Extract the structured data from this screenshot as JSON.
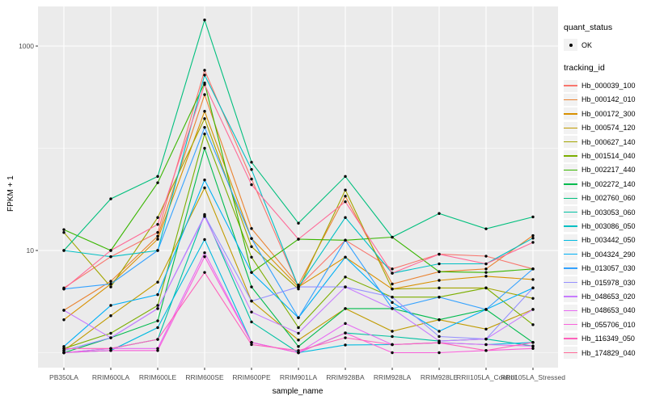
{
  "chart_data": {
    "type": "line",
    "title": "",
    "xlabel": "sample_name",
    "ylabel": "FPKM + 1",
    "y_scale": "log10",
    "y_tick_labels": [
      "1000",
      "10"
    ],
    "y_tick_values": [
      1000,
      10
    ],
    "y_minor_values": [
      100,
      1
    ],
    "ylim_log": [
      -0.05,
      3.3
    ],
    "grid": true,
    "legend_position": "right",
    "point_color": "#000000",
    "panel_bg": "#ebebeb",
    "grid_color": "#ffffff",
    "categories": [
      "PB350LA",
      "RRIM600LA",
      "RRIM600LE",
      "RRIM600SE",
      "RRIM600PE",
      "RRIM901LA",
      "RRIM928BA",
      "RRIM928LA",
      "RRIM928LE",
      "RRII105LA_Control",
      "RRII105LA_Stressed"
    ],
    "series": [
      {
        "name": "Hb_000039_100",
        "color": "#F8766D",
        "values": [
          4.3,
          8.7,
          15,
          580,
          50,
          4.4,
          12.6,
          6.6,
          9.2,
          8.8,
          6.6
        ]
      },
      {
        "name": "Hb_000142_010",
        "color": "#EA8331",
        "values": [
          2.6,
          5.0,
          13.8,
          335,
          16.4,
          4.6,
          34,
          4.7,
          6.2,
          6.6,
          14
        ]
      },
      {
        "name": "Hb_000172_300",
        "color": "#D89000",
        "values": [
          2.1,
          4.7,
          12.9,
          230,
          13.1,
          4.4,
          8.6,
          4.2,
          5.1,
          5.6,
          5.2
        ]
      },
      {
        "name": "Hb_000574_120",
        "color": "#C09B00",
        "values": [
          1.05,
          2.3,
          4.9,
          41,
          3.2,
          1.33,
          2.7,
          1.62,
          2.1,
          1.7,
          2.65
        ]
      },
      {
        "name": "Hb_000627_140",
        "color": "#A3A500",
        "values": [
          15,
          4.4,
          21,
          195,
          10.9,
          4.2,
          39,
          4.2,
          4.3,
          4.3,
          3.4
        ]
      },
      {
        "name": "Hb_001514_040",
        "color": "#7CAE00",
        "values": [
          1.1,
          1.55,
          2.9,
          138,
          8.6,
          1.76,
          5.5,
          3.5,
          3.5,
          4.3,
          1.88
        ]
      },
      {
        "name": "Hb_002217_440",
        "color": "#39B600",
        "values": [
          16,
          10,
          46,
          435,
          6.1,
          12.9,
          12.6,
          13.5,
          6.2,
          6.1,
          6.6
        ]
      },
      {
        "name": "Hb_002272_140",
        "color": "#00BB4E",
        "values": [
          1.0,
          1.4,
          2.05,
          100,
          4.4,
          1.15,
          2.7,
          2.7,
          2.1,
          2.65,
          1.26
        ]
      },
      {
        "name": "Hb_002760_060",
        "color": "#00BF7D",
        "values": [
          10,
          32,
          53,
          1800,
          73,
          18.5,
          53,
          13.5,
          23,
          16.3,
          21.3
        ]
      },
      {
        "name": "Hb_003053_060",
        "color": "#00C1A3",
        "values": [
          1.0,
          1.1,
          1.35,
          22.5,
          2.0,
          1.0,
          1.56,
          1.44,
          1.3,
          1.36,
          1.16
        ]
      },
      {
        "name": "Hb_003086_050",
        "color": "#00BFC4",
        "values": [
          10,
          8.7,
          10,
          520,
          62,
          4.4,
          21,
          6.0,
          7.4,
          7.4,
          13.2
        ]
      },
      {
        "name": "Hb_003442_050",
        "color": "#00BAE0",
        "values": [
          1.0,
          1.05,
          1.76,
          12.8,
          1.26,
          1.0,
          1.19,
          1.2,
          1.25,
          1.2,
          1.26
        ]
      },
      {
        "name": "Hb_004324_290",
        "color": "#00B0F6",
        "values": [
          1.15,
          2.9,
          3.7,
          49,
          6.1,
          2.2,
          8.6,
          3.1,
          1.62,
          2.65,
          4.3
        ]
      },
      {
        "name": "Hb_013057_030",
        "color": "#35A2FF",
        "values": [
          4.2,
          4.7,
          10,
          160,
          13.1,
          2.2,
          12.6,
          2.7,
          3.5,
          2.65,
          6.6
        ]
      },
      {
        "name": "Hb_015978_030",
        "color": "#9590FF",
        "values": [
          1.05,
          1.4,
          2.7,
          22,
          3.2,
          4.4,
          4.4,
          3.5,
          1.44,
          1.36,
          4.3
        ]
      },
      {
        "name": "Hb_048653_020",
        "color": "#C77CFF",
        "values": [
          2.6,
          1.4,
          2.7,
          21.5,
          2.5,
          1.55,
          4.4,
          2.7,
          1.3,
          1.36,
          2.65
        ]
      },
      {
        "name": "Hb_048653_040",
        "color": "#E76BF3",
        "values": [
          1.0,
          1.1,
          1.1,
          9.5,
          1.26,
          1.0,
          1.93,
          1.2,
          1.25,
          1.2,
          1.16
        ]
      },
      {
        "name": "Hb_055706_010",
        "color": "#FA62DB",
        "values": [
          1.0,
          1.05,
          1.05,
          8.7,
          1.26,
          1.0,
          1.56,
          1.0,
          1.0,
          1.05,
          1.1
        ]
      },
      {
        "name": "Hb_116349_050",
        "color": "#FF62BC",
        "values": [
          1.1,
          1.1,
          1.35,
          6.1,
          1.2,
          1.05,
          1.4,
          1.2,
          1.25,
          1.05,
          1.26
        ]
      },
      {
        "name": "Hb_174829_040",
        "color": "#FF6A98",
        "values": [
          4.2,
          10,
          18,
          420,
          44,
          12.9,
          30,
          6.0,
          9.2,
          7.4,
          12
        ]
      }
    ]
  },
  "legend": {
    "quant_title": "quant_status",
    "quant_items": [
      {
        "label": "OK",
        "marker": "point-marker",
        "color": "#000000"
      }
    ],
    "tracking_title": "tracking_id"
  },
  "axes": {
    "x_title": "sample_name",
    "y_title": "FPKM + 1"
  }
}
